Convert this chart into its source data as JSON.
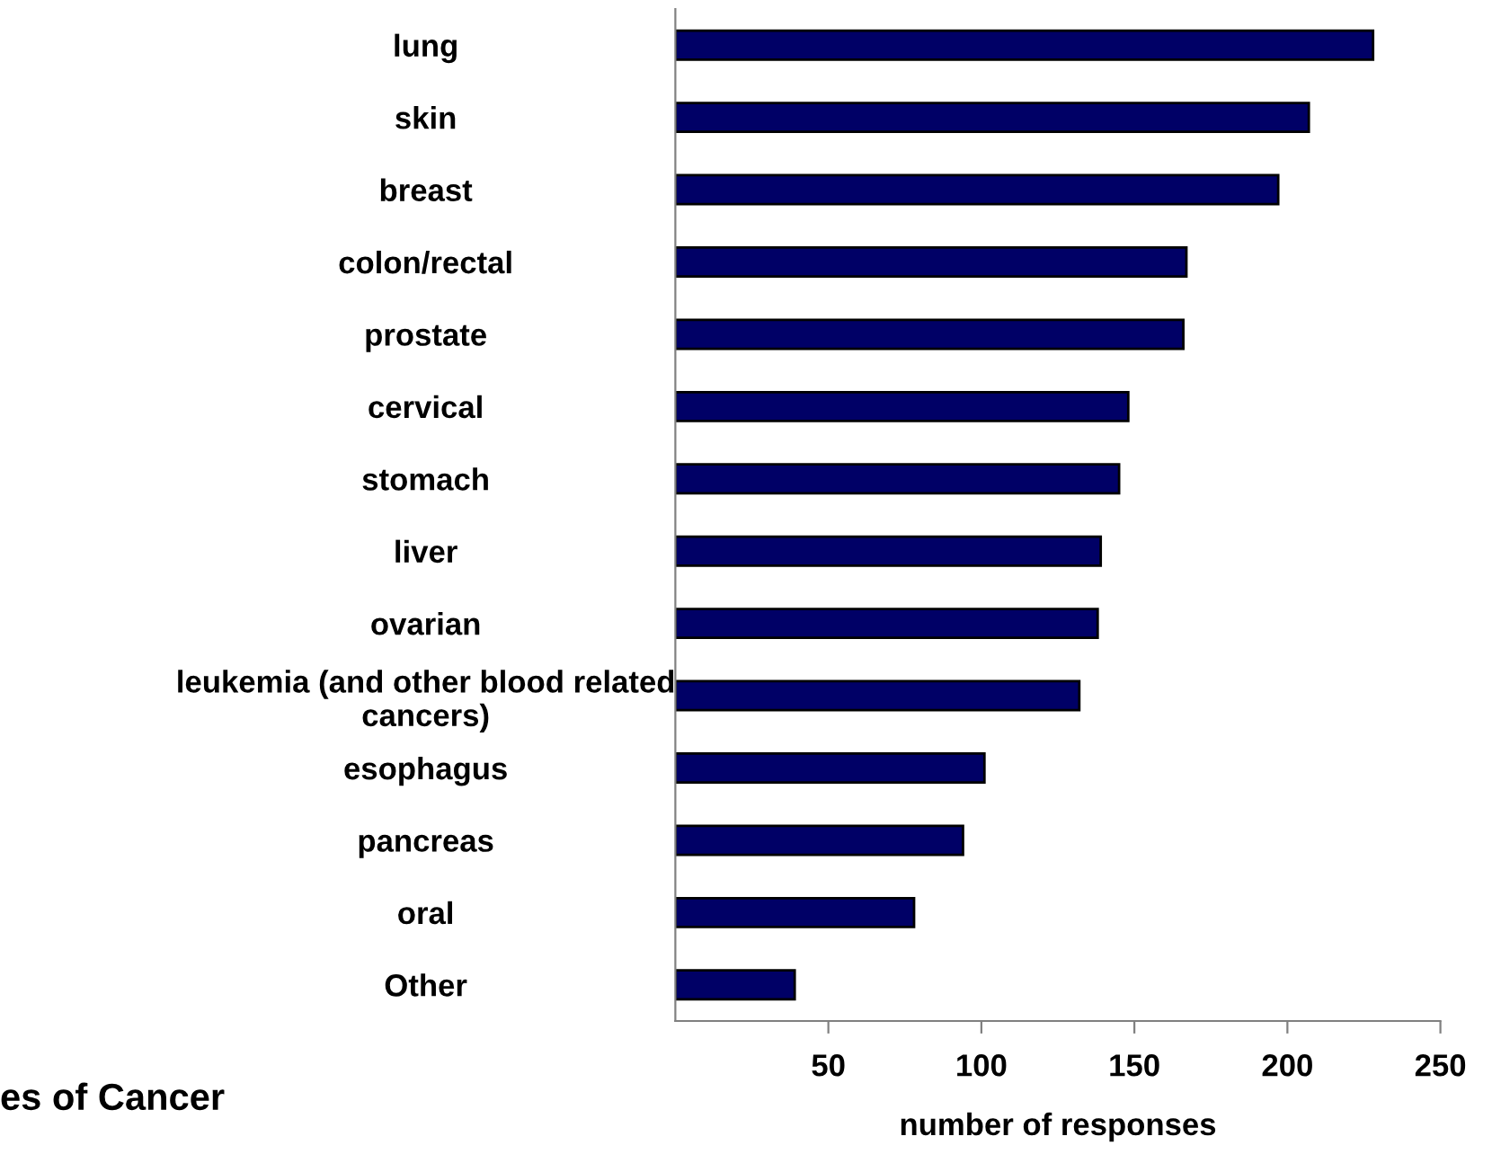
{
  "chart_data": {
    "type": "bar",
    "orientation": "horizontal",
    "title": "es of Cancer",
    "xlabel": "number of responses",
    "categories": [
      "lung",
      "skin",
      "breast",
      "colon/rectal",
      "prostate",
      "cervical",
      "stomach",
      "liver",
      "ovarian",
      "leukemia (and other blood related\ncancers)",
      "esophagus",
      "pancreas",
      "oral",
      "Other"
    ],
    "values": [
      228,
      207,
      197,
      167,
      166,
      148,
      145,
      139,
      138,
      132,
      101,
      94,
      78,
      39
    ],
    "color": "#000066",
    "xlim": [
      0,
      250
    ],
    "xticks": [
      50,
      100,
      150,
      200,
      250
    ],
    "grid": false,
    "legend": false
  }
}
